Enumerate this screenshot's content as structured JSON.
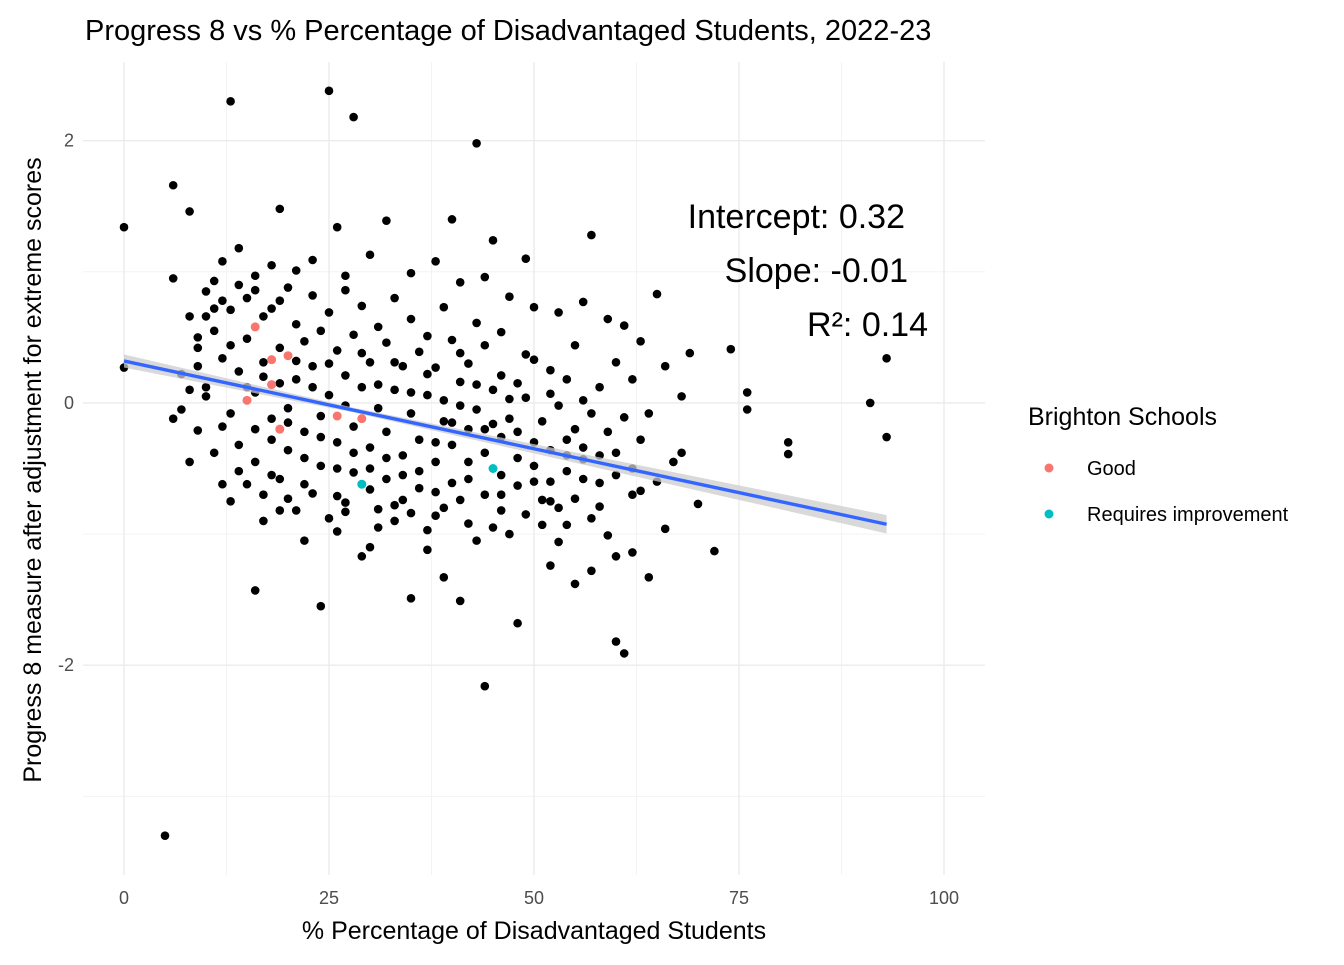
{
  "chart_data": {
    "type": "scatter",
    "title": "Progress 8 vs % Percentage of Disadvantaged Students, 2022-23",
    "xlabel": "% Percentage of Disadvantaged Students",
    "ylabel": "Progress 8 measure after adjustment for extreme scores",
    "xlim": [
      -5,
      105
    ],
    "ylim": [
      -3.6,
      2.6
    ],
    "x_ticks": [
      0,
      25,
      50,
      75,
      100
    ],
    "x_tick_labels": [
      "0",
      "25",
      "50",
      "75",
      "100"
    ],
    "y_ticks": [
      -2,
      0,
      2
    ],
    "y_tick_labels": [
      "-2",
      "0",
      "2"
    ],
    "grid": true,
    "legend": {
      "title": "Brighton Schools",
      "position": "right",
      "entries": [
        {
          "label": "Good",
          "color": "#F8766D"
        },
        {
          "label": "Requires improvement",
          "color": "#00BFC4"
        }
      ]
    },
    "annotations": {
      "intercept": "Intercept: 0.32",
      "slope": "Slope: -0.01",
      "r2": "R²: 0.14"
    },
    "regression": {
      "intercept": 0.32,
      "slope": -0.01339,
      "x_range": [
        0,
        93
      ],
      "color": "#3366FF",
      "band_color": "#cccccc"
    },
    "background_points": {
      "color": "#000000",
      "points": [
        [
          0,
          1.34
        ],
        [
          0,
          0.27
        ],
        [
          5,
          -3.3
        ],
        [
          6,
          1.66
        ],
        [
          6,
          0.95
        ],
        [
          8,
          1.46
        ],
        [
          13,
          2.3
        ],
        [
          16,
          -1.43
        ],
        [
          19,
          1.48
        ],
        [
          24,
          -1.55
        ],
        [
          25,
          2.38
        ],
        [
          28,
          2.18
        ],
        [
          43,
          1.98
        ],
        [
          44,
          -2.16
        ],
        [
          45,
          1.24
        ],
        [
          49,
          1.1
        ],
        [
          57,
          1.28
        ],
        [
          65,
          0.83
        ],
        [
          69,
          0.38
        ],
        [
          72,
          -1.13
        ],
        [
          74,
          0.41
        ],
        [
          76,
          -0.05
        ],
        [
          76,
          0.08
        ],
        [
          81,
          -0.3
        ],
        [
          81,
          -0.39
        ],
        [
          91,
          0.0
        ],
        [
          93,
          0.34
        ],
        [
          93,
          -0.26
        ],
        [
          60,
          -1.82
        ],
        [
          61,
          -1.91
        ],
        [
          55,
          -1.38
        ],
        [
          48,
          -1.68
        ],
        [
          39,
          -1.33
        ],
        [
          35,
          -1.49
        ],
        [
          30,
          -1.1
        ],
        [
          22,
          -1.05
        ],
        [
          17,
          -0.9
        ],
        [
          41,
          -1.51
        ],
        [
          52,
          -1.24
        ],
        [
          57,
          -1.28
        ],
        [
          62,
          -1.14
        ],
        [
          64,
          -1.33
        ],
        [
          66,
          -0.96
        ],
        [
          70,
          -0.77
        ],
        [
          67,
          -0.45
        ],
        [
          63,
          -0.67
        ],
        [
          58,
          -0.79
        ],
        [
          54,
          -0.93
        ],
        [
          51,
          -0.74
        ],
        [
          46,
          -0.82
        ],
        [
          42,
          -0.92
        ],
        [
          38,
          -0.86
        ],
        [
          33,
          -0.78
        ],
        [
          31,
          -0.95
        ],
        [
          27,
          -0.83
        ],
        [
          20,
          -0.73
        ],
        [
          12,
          -0.62
        ],
        [
          8,
          -0.45
        ],
        [
          6,
          -0.12
        ],
        [
          7,
          0.22
        ],
        [
          9,
          0.42
        ],
        [
          10,
          0.66
        ],
        [
          11,
          0.93
        ],
        [
          12,
          1.08
        ],
        [
          14,
          1.18
        ],
        [
          16,
          0.86
        ],
        [
          18,
          1.05
        ],
        [
          21,
          1.01
        ],
        [
          23,
          1.09
        ],
        [
          26,
          1.34
        ],
        [
          27,
          0.97
        ],
        [
          30,
          1.13
        ],
        [
          32,
          1.39
        ],
        [
          35,
          0.99
        ],
        [
          38,
          1.08
        ],
        [
          40,
          1.4
        ],
        [
          41,
          0.92
        ],
        [
          44,
          0.96
        ],
        [
          47,
          0.81
        ],
        [
          50,
          0.73
        ],
        [
          53,
          0.69
        ],
        [
          56,
          0.77
        ],
        [
          59,
          0.64
        ],
        [
          61,
          0.59
        ],
        [
          63,
          0.47
        ],
        [
          66,
          0.28
        ],
        [
          68,
          0.05
        ],
        [
          64,
          -0.08
        ],
        [
          62,
          0.18
        ],
        [
          60,
          0.31
        ],
        [
          58,
          0.12
        ],
        [
          55,
          0.44
        ],
        [
          52,
          0.25
        ],
        [
          49,
          0.37
        ],
        [
          46,
          0.54
        ],
        [
          43,
          0.61
        ],
        [
          41,
          0.38
        ],
        [
          39,
          0.73
        ],
        [
          37,
          0.51
        ],
        [
          35,
          0.64
        ],
        [
          33,
          0.8
        ],
        [
          31,
          0.58
        ],
        [
          29,
          0.74
        ],
        [
          27,
          0.86
        ],
        [
          25,
          0.69
        ],
        [
          23,
          0.82
        ],
        [
          21,
          0.6
        ],
        [
          19,
          0.78
        ],
        [
          17,
          0.66
        ],
        [
          15,
          0.49
        ],
        [
          13,
          0.71
        ],
        [
          11,
          0.55
        ],
        [
          9,
          0.28
        ],
        [
          10,
          0.05
        ],
        [
          12,
          -0.18
        ],
        [
          14,
          -0.32
        ],
        [
          16,
          -0.45
        ],
        [
          18,
          -0.55
        ],
        [
          20,
          -0.36
        ],
        [
          22,
          -0.62
        ],
        [
          24,
          -0.48
        ],
        [
          26,
          -0.71
        ],
        [
          28,
          -0.53
        ],
        [
          30,
          -0.66
        ],
        [
          32,
          -0.58
        ],
        [
          34,
          -0.74
        ],
        [
          36,
          -0.52
        ],
        [
          38,
          -0.68
        ],
        [
          40,
          -0.61
        ],
        [
          42,
          -0.45
        ],
        [
          44,
          -0.7
        ],
        [
          46,
          -0.55
        ],
        [
          48,
          -0.63
        ],
        [
          50,
          -0.48
        ],
        [
          52,
          -0.6
        ],
        [
          54,
          -0.52
        ],
        [
          56,
          -0.43
        ],
        [
          58,
          -0.61
        ],
        [
          60,
          -0.38
        ],
        [
          62,
          -0.5
        ],
        [
          65,
          -0.6
        ],
        [
          68,
          -0.38
        ],
        [
          45,
          -0.95
        ],
        [
          47,
          -1.0
        ],
        [
          53,
          -1.06
        ],
        [
          59,
          -1.01
        ],
        [
          60,
          -1.17
        ],
        [
          43,
          -1.05
        ],
        [
          37,
          -1.12
        ],
        [
          29,
          -1.17
        ],
        [
          26,
          -0.98
        ],
        [
          19,
          -0.82
        ],
        [
          14,
          -0.52
        ],
        [
          11,
          -0.38
        ],
        [
          9,
          -0.21
        ],
        [
          13,
          -0.08
        ],
        [
          15,
          0.12
        ],
        [
          17,
          0.31
        ],
        [
          19,
          0.42
        ],
        [
          21,
          0.18
        ],
        [
          23,
          0.28
        ],
        [
          25,
          0.06
        ],
        [
          27,
          0.21
        ],
        [
          29,
          0.38
        ],
        [
          31,
          0.14
        ],
        [
          33,
          0.31
        ],
        [
          35,
          0.08
        ],
        [
          37,
          0.22
        ],
        [
          39,
          0.02
        ],
        [
          41,
          0.16
        ],
        [
          43,
          -0.05
        ],
        [
          45,
          0.1
        ],
        [
          47,
          -0.12
        ],
        [
          49,
          0.04
        ],
        [
          51,
          -0.14
        ],
        [
          53,
          -0.02
        ],
        [
          55,
          -0.2
        ],
        [
          57,
          -0.08
        ],
        [
          59,
          -0.22
        ],
        [
          61,
          -0.11
        ],
        [
          63,
          -0.28
        ],
        [
          10,
          0.12
        ],
        [
          12,
          0.34
        ],
        [
          14,
          0.24
        ],
        [
          16,
          0.08
        ],
        [
          18,
          -0.12
        ],
        [
          20,
          -0.04
        ],
        [
          22,
          -0.22
        ],
        [
          24,
          -0.1
        ],
        [
          26,
          -0.3
        ],
        [
          28,
          -0.18
        ],
        [
          30,
          -0.34
        ],
        [
          32,
          -0.22
        ],
        [
          34,
          -0.4
        ],
        [
          36,
          -0.28
        ],
        [
          38,
          -0.45
        ],
        [
          40,
          -0.32
        ],
        [
          42,
          -0.2
        ],
        [
          44,
          -0.38
        ],
        [
          46,
          -0.26
        ],
        [
          48,
          -0.42
        ],
        [
          50,
          -0.3
        ],
        [
          52,
          -0.36
        ],
        [
          54,
          -0.28
        ],
        [
          56,
          -0.34
        ],
        [
          8,
          0.66
        ],
        [
          10,
          0.85
        ],
        [
          12,
          0.78
        ],
        [
          14,
          0.9
        ],
        [
          16,
          0.97
        ],
        [
          18,
          0.72
        ],
        [
          20,
          0.88
        ],
        [
          22,
          0.47
        ],
        [
          24,
          0.55
        ],
        [
          26,
          0.4
        ],
        [
          28,
          0.52
        ],
        [
          30,
          0.31
        ],
        [
          32,
          0.46
        ],
        [
          34,
          0.28
        ],
        [
          36,
          0.39
        ],
        [
          38,
          0.27
        ],
        [
          40,
          0.48
        ],
        [
          42,
          0.3
        ],
        [
          44,
          0.44
        ],
        [
          46,
          0.21
        ],
        [
          48,
          0.15
        ],
        [
          50,
          0.33
        ],
        [
          52,
          0.07
        ],
        [
          54,
          0.18
        ],
        [
          56,
          0.02
        ],
        [
          13,
          -0.75
        ],
        [
          15,
          -0.62
        ],
        [
          17,
          -0.7
        ],
        [
          19,
          -0.58
        ],
        [
          21,
          -0.82
        ],
        [
          23,
          -0.69
        ],
        [
          25,
          -0.88
        ],
        [
          27,
          -0.76
        ],
        [
          29,
          -0.62
        ],
        [
          31,
          -0.81
        ],
        [
          33,
          -0.9
        ],
        [
          35,
          -0.84
        ],
        [
          37,
          -0.97
        ],
        [
          39,
          -0.8
        ],
        [
          41,
          -0.74
        ],
        [
          49,
          -0.85
        ],
        [
          51,
          -0.93
        ],
        [
          53,
          -0.8
        ],
        [
          55,
          -0.73
        ],
        [
          57,
          -0.88
        ],
        [
          7,
          -0.05
        ],
        [
          8,
          0.1
        ],
        [
          9,
          0.5
        ],
        [
          11,
          0.72
        ],
        [
          13,
          0.44
        ],
        [
          15,
          0.8
        ],
        [
          17,
          0.2
        ],
        [
          19,
          0.15
        ],
        [
          21,
          0.32
        ],
        [
          23,
          0.12
        ],
        [
          25,
          0.3
        ],
        [
          27,
          -0.02
        ],
        [
          29,
          0.12
        ],
        [
          31,
          -0.04
        ],
        [
          33,
          0.1
        ],
        [
          35,
          -0.08
        ],
        [
          37,
          0.06
        ],
        [
          39,
          -0.14
        ],
        [
          41,
          -0.02
        ],
        [
          43,
          0.14
        ],
        [
          45,
          -0.16
        ],
        [
          47,
          0.03
        ],
        [
          16,
          -0.2
        ],
        [
          18,
          -0.28
        ],
        [
          20,
          -0.15
        ],
        [
          22,
          -0.42
        ],
        [
          24,
          -0.26
        ],
        [
          26,
          -0.5
        ],
        [
          28,
          -0.38
        ],
        [
          30,
          -0.5
        ],
        [
          32,
          -0.42
        ],
        [
          34,
          -0.55
        ],
        [
          36,
          -0.65
        ],
        [
          38,
          -0.3
        ],
        [
          40,
          -0.15
        ],
        [
          42,
          -0.58
        ],
        [
          44,
          -0.2
        ],
        [
          46,
          -0.7
        ],
        [
          48,
          -0.22
        ],
        [
          50,
          -0.6
        ],
        [
          52,
          -0.75
        ],
        [
          54,
          -0.4
        ],
        [
          56,
          -0.58
        ],
        [
          58,
          -0.4
        ],
        [
          60,
          -0.55
        ],
        [
          62,
          -0.7
        ]
      ]
    },
    "highlight_points": [
      {
        "group": "Good",
        "color": "#F8766D",
        "points": [
          [
            16,
            0.58
          ],
          [
            18,
            0.33
          ],
          [
            20,
            0.36
          ],
          [
            18,
            0.14
          ],
          [
            15,
            0.02
          ],
          [
            19,
            -0.2
          ],
          [
            26,
            -0.1
          ],
          [
            29,
            -0.12
          ]
        ]
      },
      {
        "group": "Requires improvement",
        "color": "#00BFC4",
        "points": [
          [
            29,
            -0.62
          ],
          [
            45,
            -0.5
          ]
        ]
      }
    ]
  }
}
